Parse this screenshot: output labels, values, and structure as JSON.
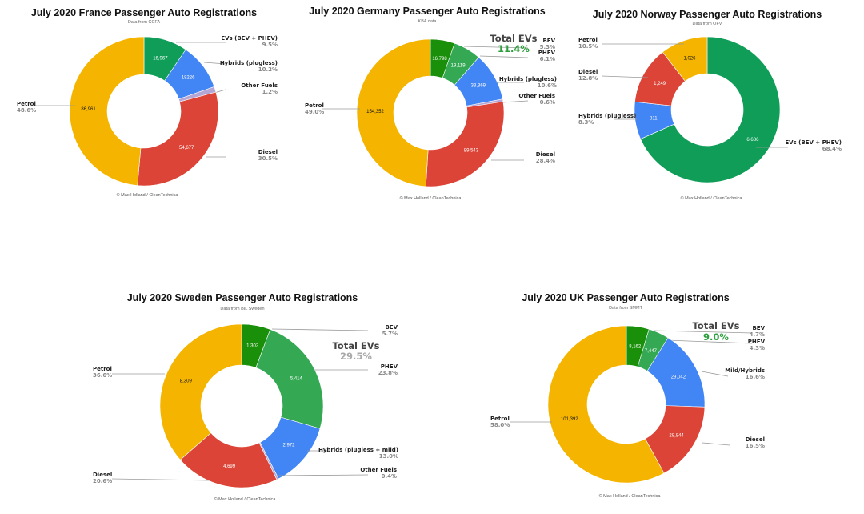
{
  "colors": {
    "petrol": "#F4B400",
    "diesel": "#DB4437",
    "hybrid": "#4285F4",
    "other": "#B4A7D6",
    "ev": "#0F9D58",
    "bev": "#1A8F0A",
    "phev": "#34A853",
    "total_ev_green": "#2E9E3E",
    "total_ev_gray": "#A9A9A9"
  },
  "chart_data": [
    {
      "type": "pie",
      "title": "July 2020 France Passenger Auto Registrations",
      "subtitle": "Data from CCFA",
      "credit": "© Max Holland / CleanTechnica",
      "slices": [
        {
          "label": "EVs (BEV + PHEV)",
          "value_label": "16,967",
          "value": 16967,
          "pct": "9.5%",
          "color_key": "ev"
        },
        {
          "label": "Hybrids (plugless)",
          "value_label": "18226",
          "value": 18226,
          "pct": "10.2%",
          "color_key": "hybrid"
        },
        {
          "label": "Other Fuels",
          "value_label": "",
          "value": 2140,
          "pct": "1.2%",
          "color_key": "other"
        },
        {
          "label": "Diesel",
          "value_label": "54,677",
          "value": 54677,
          "pct": "30.5%",
          "color_key": "diesel"
        },
        {
          "label": "Petrol",
          "value_label": "86,961",
          "value": 86961,
          "pct": "48.6%",
          "color_key": "petrol"
        }
      ]
    },
    {
      "type": "pie",
      "title": "July 2020 Germany Passenger Auto Registrations",
      "subtitle": "KBA data",
      "credit": "© Max Holland / CleanTechnica",
      "total_ev": {
        "label": "Total EVs",
        "pct": "11.4%",
        "color_key": "total_ev_green"
      },
      "slices": [
        {
          "label": "BEV",
          "value_label": "16,798",
          "value": 16798,
          "pct": "5.3%",
          "color_key": "bev"
        },
        {
          "label": "PHEV",
          "value_label": "19,119",
          "value": 19119,
          "pct": "6.1%",
          "color_key": "phev"
        },
        {
          "label": "Hybrids (plugless)",
          "value_label": "33,369",
          "value": 33369,
          "pct": "10.6%",
          "color_key": "hybrid"
        },
        {
          "label": "Other Fuels",
          "value_label": "",
          "value": 1800,
          "pct": "0.6%",
          "color_key": "other"
        },
        {
          "label": "Diesel",
          "value_label": "89,543",
          "value": 89543,
          "pct": "28.4%",
          "color_key": "diesel"
        },
        {
          "label": "Petrol",
          "value_label": "154,352",
          "value": 154352,
          "pct": "49.0%",
          "color_key": "petrol"
        }
      ]
    },
    {
      "type": "pie",
      "title": "July 2020 Norway Passenger Auto Registrations",
      "subtitle": "Data from OFV",
      "credit": "© Max Holland / CleanTechnica",
      "slices": [
        {
          "label": "EVs (BEV + PHEV)",
          "value_label": "6,686",
          "value": 6686,
          "pct": "68.4%",
          "color_key": "ev"
        },
        {
          "label": "Hybrids (plugless)",
          "value_label": "811",
          "value": 811,
          "pct": "8.3%",
          "color_key": "hybrid"
        },
        {
          "label": "Diesel",
          "value_label": "1,249",
          "value": 1249,
          "pct": "12.8%",
          "color_key": "diesel"
        },
        {
          "label": "Petrol",
          "value_label": "1,026",
          "value": 1026,
          "pct": "10.5%",
          "color_key": "petrol"
        }
      ]
    },
    {
      "type": "pie",
      "title": "July 2020 Sweden Passenger Auto Registrations",
      "subtitle": "Data from BIL Sweden",
      "credit": "© Max Holland / CleanTechnica",
      "total_ev": {
        "label": "Total EVs",
        "pct": "29.5%",
        "color_key": "total_ev_gray"
      },
      "slices": [
        {
          "label": "BEV",
          "value_label": "1,302",
          "value": 1302,
          "pct": "5.7%",
          "color_key": "bev"
        },
        {
          "label": "PHEV",
          "value_label": "5,414",
          "value": 5414,
          "pct": "23.8%",
          "color_key": "phev"
        },
        {
          "label": "Hybrids (plugless + mild)",
          "value_label": "2,972",
          "value": 2972,
          "pct": "13.0%",
          "color_key": "hybrid"
        },
        {
          "label": "Other Fuels",
          "value_label": "",
          "value": 91,
          "pct": "0.4%",
          "color_key": "other"
        },
        {
          "label": "Diesel",
          "value_label": "4,699",
          "value": 4699,
          "pct": "20.6%",
          "color_key": "diesel"
        },
        {
          "label": "Petrol",
          "value_label": "8,309",
          "value": 8309,
          "pct": "36.6%",
          "color_key": "petrol"
        }
      ]
    },
    {
      "type": "pie",
      "title": "July 2020 UK Passenger Auto Registrations",
      "subtitle": "Data from SMMT",
      "credit": "© Max Holland / CleanTechnica",
      "total_ev": {
        "label": "Total EVs",
        "pct": "9.0%",
        "color_key": "total_ev_green"
      },
      "slices": [
        {
          "label": "BEV",
          "value_label": "8,162",
          "value": 8162,
          "pct": "4.7%",
          "color_key": "bev"
        },
        {
          "label": "PHEV",
          "value_label": "7,447",
          "value": 7447,
          "pct": "4.3%",
          "color_key": "phev"
        },
        {
          "label": "Mild/Hybrids",
          "value_label": "29,042",
          "value": 29042,
          "pct": "16.6%",
          "color_key": "hybrid"
        },
        {
          "label": "Diesel",
          "value_label": "28,844",
          "value": 28844,
          "pct": "16.5%",
          "color_key": "diesel"
        },
        {
          "label": "Petrol",
          "value_label": "101,392",
          "value": 101392,
          "pct": "58.0%",
          "color_key": "petrol"
        }
      ]
    }
  ]
}
